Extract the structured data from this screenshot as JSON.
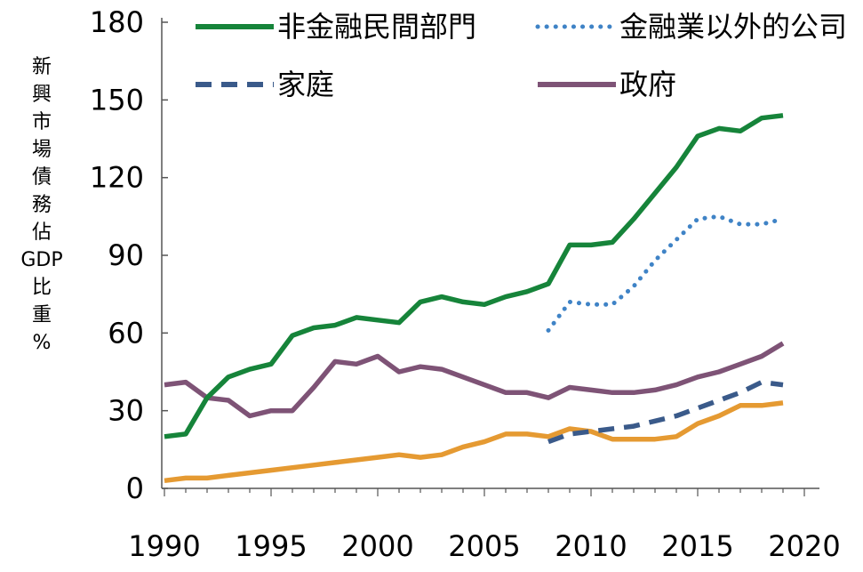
{
  "chart_data": {
    "type": "line",
    "ylabel": "新興市場債務佔GDP比重%",
    "ylabel_chars": [
      "新",
      "興",
      "市",
      "場",
      "債",
      "務",
      "佔",
      "GDP",
      "比",
      "重",
      "%"
    ],
    "xlim": [
      1990,
      2020
    ],
    "ylim": [
      0,
      180
    ],
    "x_ticks": [
      "1990",
      "1995",
      "2000",
      "2005",
      "2010",
      "2015",
      "2020"
    ],
    "y_ticks": [
      "0",
      "30",
      "60",
      "90",
      "120",
      "150",
      "180"
    ],
    "grid": false,
    "legend_position": "top",
    "series": [
      {
        "name": "非金融民間部門",
        "color": "#16843a",
        "style": "solid",
        "x": [
          1990,
          1991,
          1992,
          1993,
          1994,
          1995,
          1996,
          1997,
          1998,
          1999,
          2000,
          2001,
          2002,
          2003,
          2004,
          2005,
          2006,
          2007,
          2008,
          2009,
          2010,
          2011,
          2012,
          2013,
          2014,
          2015,
          2016,
          2017,
          2018,
          2019
        ],
        "values": [
          20,
          21,
          35,
          43,
          46,
          48,
          59,
          62,
          63,
          66,
          65,
          64,
          72,
          74,
          72,
          71,
          74,
          76,
          79,
          94,
          94,
          95,
          104,
          114,
          124,
          136,
          139,
          138,
          143,
          144
        ]
      },
      {
        "name": "金融業以外的公司",
        "color": "#3f83c6",
        "style": "dotted",
        "x": [
          2008,
          2009,
          2010,
          2011,
          2012,
          2013,
          2014,
          2015,
          2016,
          2017,
          2018,
          2019
        ],
        "values": [
          61,
          72,
          71,
          71,
          78,
          88,
          96,
          104,
          105,
          102,
          102,
          104
        ]
      },
      {
        "name": "家庭",
        "color": "#3a5a8a",
        "style": "dashed",
        "x": [
          2008,
          2009,
          2010,
          2011,
          2012,
          2013,
          2014,
          2015,
          2016,
          2017,
          2018,
          2019
        ],
        "values": [
          18,
          21,
          22,
          23,
          24,
          26,
          28,
          31,
          34,
          37,
          41,
          40
        ]
      },
      {
        "name": "政府",
        "color": "#7e5376",
        "style": "solid",
        "x": [
          1990,
          1991,
          1992,
          1993,
          1994,
          1995,
          1996,
          1997,
          1998,
          1999,
          2000,
          2001,
          2002,
          2003,
          2004,
          2005,
          2006,
          2007,
          2008,
          2009,
          2010,
          2011,
          2012,
          2013,
          2014,
          2015,
          2016,
          2017,
          2018,
          2019
        ],
        "values": [
          40,
          41,
          35,
          34,
          28,
          30,
          30,
          39,
          49,
          48,
          51,
          45,
          47,
          46,
          43,
          40,
          37,
          37,
          35,
          39,
          38,
          37,
          37,
          38,
          40,
          43,
          45,
          48,
          51,
          56
        ]
      },
      {
        "name": "",
        "color": "#e59a32",
        "style": "solid",
        "x": [
          1990,
          1991,
          1992,
          1993,
          1994,
          1995,
          1996,
          1997,
          1998,
          1999,
          2000,
          2001,
          2002,
          2003,
          2004,
          2005,
          2006,
          2007,
          2008,
          2009,
          2010,
          2011,
          2012,
          2013,
          2014,
          2015,
          2016,
          2017,
          2018,
          2019
        ],
        "values": [
          3,
          4,
          4,
          5,
          6,
          7,
          8,
          9,
          10,
          11,
          12,
          13,
          12,
          13,
          16,
          18,
          21,
          21,
          20,
          23,
          22,
          19,
          19,
          19,
          20,
          25,
          28,
          32,
          32,
          33
        ]
      }
    ]
  }
}
